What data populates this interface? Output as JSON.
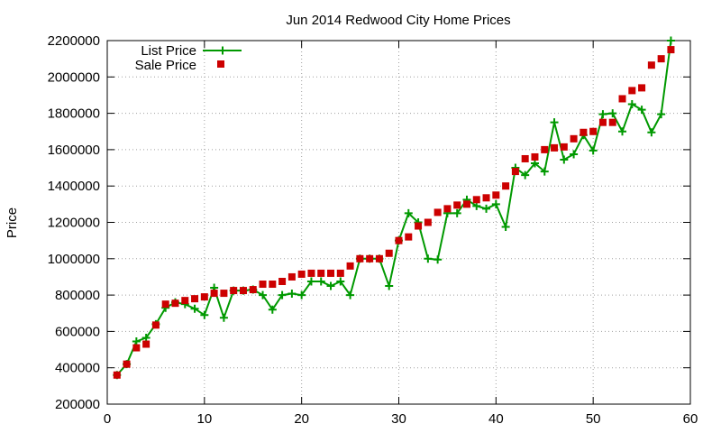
{
  "chart_data": {
    "type": "line",
    "title": "Jun 2014 Redwood City Home Prices",
    "xlabel": "",
    "ylabel": "Price",
    "xlim": [
      0,
      60
    ],
    "ylim": [
      200000,
      2200000
    ],
    "x_ticks": [
      0,
      10,
      20,
      30,
      40,
      50,
      60
    ],
    "y_ticks": [
      200000,
      400000,
      600000,
      800000,
      1000000,
      1200000,
      1400000,
      1600000,
      1800000,
      2000000,
      2200000
    ],
    "x_tick_labels": [
      "0",
      "10",
      "20",
      "30",
      "40",
      "50",
      "60"
    ],
    "y_tick_labels": [
      "200000",
      "400000",
      "600000",
      "800000",
      "1000000",
      "1200000",
      "1400000",
      "1600000",
      "1800000",
      "2000000",
      "2200000"
    ],
    "grid": true,
    "legend_position": "top-left",
    "series": [
      {
        "name": "List Price",
        "style": "line-with-plus-markers",
        "color": "#009900",
        "x": [
          1,
          2,
          3,
          4,
          5,
          6,
          7,
          8,
          9,
          10,
          11,
          12,
          13,
          14,
          15,
          16,
          17,
          18,
          19,
          20,
          21,
          22,
          23,
          24,
          25,
          26,
          27,
          28,
          29,
          30,
          31,
          32,
          33,
          34,
          35,
          36,
          37,
          38,
          39,
          40,
          41,
          42,
          43,
          44,
          45,
          46,
          47,
          48,
          49,
          50,
          51,
          52,
          53,
          54,
          55,
          56,
          57,
          58
        ],
        "values": [
          360000,
          420000,
          545000,
          565000,
          640000,
          730000,
          760000,
          750000,
          725000,
          690000,
          840000,
          675000,
          825000,
          825000,
          830000,
          800000,
          720000,
          800000,
          808000,
          800000,
          875000,
          875000,
          850000,
          875000,
          800000,
          1000000,
          1000000,
          1000000,
          850000,
          1100000,
          1250000,
          1200000,
          1000000,
          995000,
          1250000,
          1250000,
          1325000,
          1290000,
          1275000,
          1300000,
          1175000,
          1500000,
          1460000,
          1525000,
          1480000,
          1750000,
          1545000,
          1575000,
          1680000,
          1595000,
          1795000,
          1800000,
          1700000,
          1850000,
          1820000,
          1695000,
          1795000,
          2200000
        ]
      },
      {
        "name": "Sale Price",
        "style": "square-markers",
        "color": "#cc0000",
        "x": [
          1,
          2,
          3,
          4,
          5,
          6,
          7,
          8,
          9,
          10,
          11,
          12,
          13,
          14,
          15,
          16,
          17,
          18,
          19,
          20,
          21,
          22,
          23,
          24,
          25,
          26,
          27,
          28,
          29,
          30,
          31,
          32,
          33,
          34,
          35,
          36,
          37,
          38,
          39,
          40,
          41,
          42,
          43,
          44,
          45,
          46,
          47,
          48,
          49,
          50,
          51,
          52,
          53,
          54,
          55,
          56,
          57,
          58
        ],
        "values": [
          360000,
          420000,
          510000,
          530000,
          635000,
          750000,
          755000,
          770000,
          780000,
          790000,
          810000,
          810000,
          825000,
          825000,
          830000,
          860000,
          860000,
          875000,
          900000,
          915000,
          920000,
          920000,
          920000,
          920000,
          960000,
          1000000,
          1000000,
          1000000,
          1030000,
          1100000,
          1120000,
          1180000,
          1200000,
          1255000,
          1275000,
          1295000,
          1300000,
          1325000,
          1335000,
          1350000,
          1400000,
          1480000,
          1550000,
          1560000,
          1600000,
          1610000,
          1615000,
          1660000,
          1695000,
          1700000,
          1750000,
          1750000,
          1880000,
          1925000,
          1940000,
          2065000,
          2100000,
          2150000
        ]
      }
    ]
  }
}
